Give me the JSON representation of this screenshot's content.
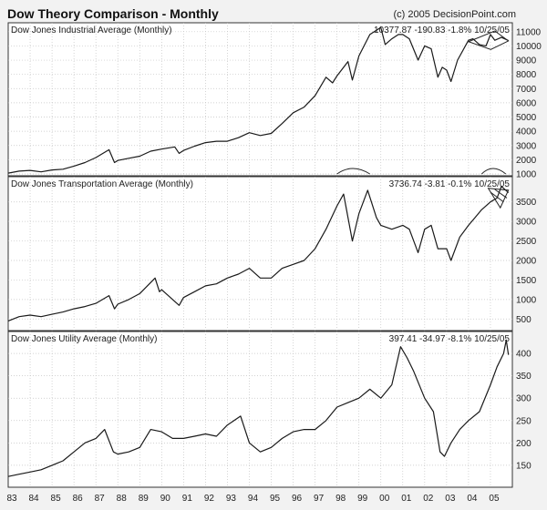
{
  "header": {
    "title": "Dow Theory Comparison - Monthly",
    "copyright": "(c) 2005 DecisionPoint.com"
  },
  "chart_data": [
    {
      "type": "line",
      "title": "Dow Jones Industrial Average (Monthly)",
      "readout": {
        "last": "10377.87",
        "change": "-190.83",
        "pct": "-1.8%",
        "date": "10/25/05"
      },
      "ylim": [
        1000,
        11500
      ],
      "yticks": [
        1000,
        2000,
        3000,
        4000,
        5000,
        6000,
        7000,
        8000,
        9000,
        10000,
        11000
      ],
      "grid": true,
      "series": [
        {
          "x": [
            1983.0,
            1983.5,
            1984.0,
            1984.5,
            1985.0,
            1985.5,
            1986.0,
            1986.5,
            1987.0,
            1987.6,
            1987.85,
            1988.0,
            1988.5,
            1989.0,
            1989.5,
            1990.0,
            1990.6,
            1990.8,
            1991.0,
            1991.5,
            1992.0,
            1992.5,
            1993.0,
            1993.5,
            1994.0,
            1994.5,
            1995.0,
            1995.5,
            1996.0,
            1996.5,
            1997.0,
            1997.5,
            1997.8,
            1998.0,
            1998.5,
            1998.7,
            1999.0,
            1999.5,
            2000.0,
            2000.2,
            2000.5,
            2000.8,
            2001.0,
            2001.3,
            2001.7,
            2002.0,
            2002.3,
            2002.6,
            2002.8,
            2003.0,
            2003.2,
            2003.5,
            2004.0,
            2004.2,
            2004.5,
            2004.8,
            2005.0,
            2005.2,
            2005.5,
            2005.82
          ],
          "values": [
            1060,
            1200,
            1250,
            1150,
            1280,
            1330,
            1550,
            1800,
            2150,
            2700,
            1800,
            1950,
            2100,
            2250,
            2600,
            2750,
            2900,
            2450,
            2650,
            2950,
            3200,
            3300,
            3300,
            3550,
            3900,
            3700,
            3850,
            4550,
            5300,
            5700,
            6500,
            7800,
            7400,
            7900,
            8900,
            7600,
            9300,
            10800,
            11300,
            10100,
            10500,
            10800,
            10800,
            10500,
            9000,
            10000,
            9800,
            7800,
            8500,
            8300,
            7500,
            9000,
            10400,
            10500,
            10100,
            10000,
            10800,
            10400,
            10600,
            10378
          ]
        }
      ],
      "xlim": [
        1983,
        2006
      ]
    },
    {
      "type": "line",
      "title": "Dow Jones Transportation Average (Monthly)",
      "readout": {
        "last": "3736.74",
        "change": "-3.81",
        "pct": "-0.1%",
        "date": "10/25/05"
      },
      "ylim": [
        250,
        4100
      ],
      "yticks": [
        500,
        1000,
        1500,
        2000,
        2500,
        3000,
        3500
      ],
      "grid": true,
      "series": [
        {
          "x": [
            1983.0,
            1983.5,
            1984.0,
            1984.5,
            1985.0,
            1985.5,
            1986.0,
            1986.5,
            1987.0,
            1987.6,
            1987.85,
            1988.0,
            1988.5,
            1989.0,
            1989.7,
            1989.9,
            1990.0,
            1990.8,
            1991.0,
            1991.5,
            1992.0,
            1992.5,
            1993.0,
            1993.5,
            1994.0,
            1994.5,
            1995.0,
            1995.5,
            1996.0,
            1996.5,
            1997.0,
            1997.5,
            1998.0,
            1998.3,
            1998.7,
            1999.0,
            1999.4,
            1999.8,
            2000.0,
            2000.5,
            2001.0,
            2001.3,
            2001.7,
            2002.0,
            2002.3,
            2002.6,
            2003.0,
            2003.2,
            2003.6,
            2004.0,
            2004.3,
            2004.6,
            2005.0,
            2005.3,
            2005.5,
            2005.82
          ],
          "values": [
            450,
            560,
            600,
            560,
            620,
            680,
            760,
            820,
            900,
            1100,
            760,
            880,
            1000,
            1150,
            1550,
            1200,
            1250,
            850,
            1050,
            1200,
            1350,
            1400,
            1550,
            1650,
            1800,
            1550,
            1550,
            1800,
            1900,
            2000,
            2300,
            2800,
            3400,
            3700,
            2500,
            3200,
            3800,
            3100,
            2900,
            2800,
            2900,
            2800,
            2200,
            2800,
            2900,
            2300,
            2300,
            2000,
            2600,
            2900,
            3100,
            3300,
            3500,
            3600,
            3900,
            3737
          ]
        }
      ],
      "xlim": [
        1983,
        2006
      ]
    },
    {
      "type": "line",
      "title": "Dow Jones Utility Average (Monthly)",
      "readout": {
        "last": "397.41",
        "change": "-34.97",
        "pct": "-8.1%",
        "date": "10/25/05"
      },
      "ylim": [
        105,
        445
      ],
      "yticks": [
        150,
        200,
        250,
        300,
        350,
        400
      ],
      "grid": true,
      "series": [
        {
          "x": [
            1983.0,
            1983.5,
            1984.0,
            1984.5,
            1985.0,
            1985.5,
            1986.0,
            1986.5,
            1987.0,
            1987.4,
            1987.8,
            1988.0,
            1988.5,
            1989.0,
            1989.5,
            1990.0,
            1990.5,
            1991.0,
            1991.5,
            1992.0,
            1992.5,
            1993.0,
            1993.6,
            1994.0,
            1994.5,
            1995.0,
            1995.5,
            1996.0,
            1996.5,
            1997.0,
            1997.5,
            1998.0,
            1998.5,
            1999.0,
            1999.5,
            2000.0,
            2000.5,
            2000.9,
            2001.2,
            2001.5,
            2002.0,
            2002.4,
            2002.7,
            2002.9,
            2003.2,
            2003.6,
            2004.0,
            2004.5,
            2005.0,
            2005.3,
            2005.6,
            2005.72,
            2005.82
          ],
          "values": [
            125,
            130,
            135,
            140,
            150,
            160,
            180,
            200,
            210,
            230,
            180,
            175,
            180,
            190,
            230,
            225,
            210,
            210,
            215,
            220,
            215,
            240,
            260,
            200,
            180,
            190,
            210,
            225,
            230,
            230,
            250,
            280,
            290,
            300,
            320,
            300,
            330,
            415,
            390,
            360,
            300,
            270,
            180,
            170,
            200,
            230,
            250,
            270,
            330,
            370,
            400,
            430,
            397
          ]
        }
      ],
      "xlim": [
        1983,
        2006
      ]
    }
  ],
  "x_axis": {
    "ticks": [
      1983,
      1984,
      1985,
      1986,
      1987,
      1988,
      1989,
      1990,
      1991,
      1992,
      1993,
      1994,
      1995,
      1996,
      1997,
      1998,
      1999,
      2000,
      2001,
      2002,
      2003,
      2004,
      2005
    ],
    "labels": [
      "83",
      "84",
      "85",
      "86",
      "87",
      "88",
      "89",
      "90",
      "91",
      "92",
      "93",
      "94",
      "95",
      "96",
      "97",
      "98",
      "99",
      "00",
      "01",
      "02",
      "03",
      "04",
      "05"
    ]
  }
}
